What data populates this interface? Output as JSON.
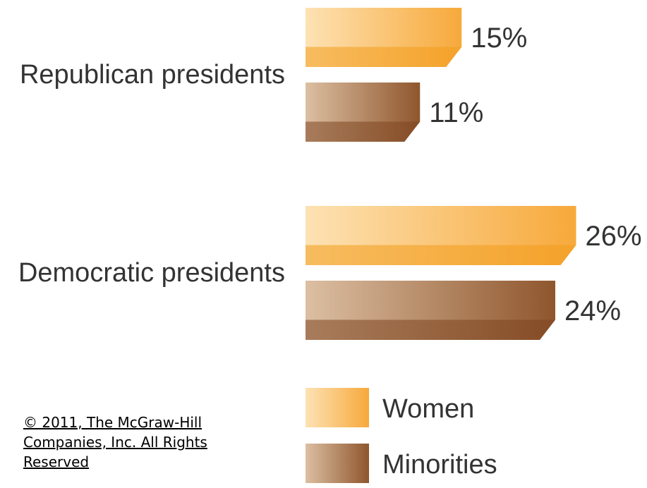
{
  "chart_data": {
    "type": "bar",
    "orientation": "horizontal",
    "categories": [
      "Republican presidents",
      "Democratic presidents"
    ],
    "series": [
      {
        "name": "Women",
        "values": [
          15,
          26
        ],
        "labels": [
          "15%",
          "26%"
        ],
        "color": "#f7a93b"
      },
      {
        "name": "Minorities",
        "values": [
          11,
          24
        ],
        "labels": [
          "11%",
          "24%"
        ],
        "color": "#9b6238"
      }
    ],
    "unit": "%",
    "xlim": [
      0,
      30
    ],
    "grid": false,
    "legend": {
      "position": "bottom-right",
      "entries": [
        "Women",
        "Minorities"
      ]
    }
  },
  "copyright": "© 2011, The McGraw-Hill Companies, Inc. All Rights Reserved"
}
